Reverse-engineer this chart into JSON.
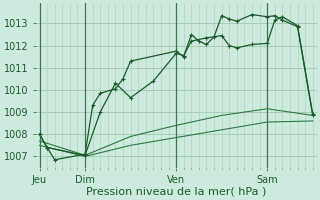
{
  "title": "Pression niveau de la mer( hPa )",
  "background_color": "#ceeade",
  "grid_color": "#a8cbb8",
  "line_color": "#1a5c28",
  "line_color2": "#2a7a3a",
  "ylim": [
    1006.5,
    1013.9
  ],
  "yticks": [
    1007,
    1008,
    1009,
    1010,
    1011,
    1012,
    1013
  ],
  "day_labels": [
    "Jeu",
    "Dim",
    "Ven",
    "Sam"
  ],
  "day_positions": [
    0,
    36,
    108,
    180
  ],
  "xmax": 216,
  "line1_x": [
    0,
    6,
    12,
    36,
    42,
    48,
    60,
    66,
    72,
    108,
    114,
    120,
    126,
    132,
    138,
    144,
    150,
    156,
    168,
    180,
    186,
    192,
    204,
    216
  ],
  "line1_y": [
    1008.0,
    1007.4,
    1006.85,
    1007.1,
    1009.3,
    1009.85,
    1010.05,
    1010.5,
    1011.3,
    1011.75,
    1011.5,
    1012.5,
    1012.2,
    1012.05,
    1012.4,
    1013.35,
    1013.2,
    1013.1,
    1013.4,
    1013.3,
    1013.35,
    1013.15,
    1012.85,
    1008.85
  ],
  "line2_x": [
    0,
    6,
    36,
    48,
    60,
    72,
    90,
    108,
    114,
    120,
    132,
    144,
    150,
    156,
    168,
    180,
    186,
    192,
    204,
    216
  ],
  "line2_y": [
    1008.0,
    1007.4,
    1007.05,
    1009.0,
    1010.3,
    1009.65,
    1010.4,
    1011.65,
    1011.55,
    1012.2,
    1012.35,
    1012.45,
    1012.0,
    1011.9,
    1012.05,
    1012.1,
    1013.15,
    1013.3,
    1012.9,
    1008.9
  ],
  "line3_x": [
    0,
    36,
    72,
    108,
    144,
    180,
    216
  ],
  "line3_y": [
    1007.7,
    1007.05,
    1007.9,
    1008.4,
    1008.85,
    1009.15,
    1008.85
  ],
  "line4_x": [
    0,
    36,
    72,
    108,
    144,
    180,
    216
  ],
  "line4_y": [
    1007.5,
    1007.0,
    1007.5,
    1007.85,
    1008.2,
    1008.55,
    1008.6
  ],
  "figsize": [
    3.2,
    2.0
  ],
  "dpi": 100,
  "label_fontsize": 7,
  "xlabel_fontsize": 8
}
